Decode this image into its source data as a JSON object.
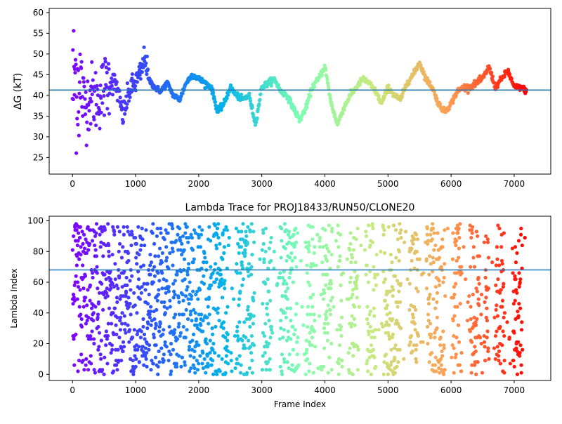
{
  "colors": {
    "hline": "#1f77b4",
    "colormap": "rainbow",
    "colormap_stops": [
      "#ff0000",
      "#ff9a50",
      "#c8e97e",
      "#7ffeb2",
      "#00b4eb",
      "#3050f8",
      "#8000ff"
    ]
  },
  "chart_data": [
    {
      "type": "scatter",
      "title": "",
      "xlabel": "",
      "ylabel": "ΔG (kT)",
      "xlim": [
        -370,
        7580
      ],
      "ylim": [
        21,
        61
      ],
      "xticks": [
        0,
        1000,
        2000,
        3000,
        4000,
        5000,
        6000,
        7000
      ],
      "xtick_labels": [
        "0",
        "1000",
        "2000",
        "3000",
        "4000",
        "5000",
        "6000",
        "7000"
      ],
      "yticks": [
        25,
        30,
        35,
        40,
        45,
        50,
        55,
        60
      ],
      "ytick_labels": [
        "25",
        "30",
        "35",
        "40",
        "45",
        "50",
        "55",
        "60"
      ],
      "hline": 41.3,
      "color_by": "frame index (rainbow colormap, red at frame 0 to violet at last frame)",
      "n_points": 7200,
      "trace_keypoints": {
        "x": [
          0,
          50,
          100,
          150,
          200,
          300,
          400,
          500,
          600,
          700,
          800,
          900,
          1000,
          1100,
          1150,
          1200,
          1300,
          1400,
          1500,
          1600,
          1700,
          1800,
          1900,
          2000,
          2100,
          2200,
          2300,
          2400,
          2500,
          2600,
          2700,
          2800,
          2900,
          3000,
          3100,
          3200,
          3300,
          3400,
          3500,
          3600,
          3700,
          3800,
          3900,
          4000,
          4100,
          4200,
          4300,
          4400,
          4500,
          4600,
          4700,
          4800,
          4900,
          5000,
          5100,
          5200,
          5300,
          5400,
          5500,
          5600,
          5700,
          5800,
          5900,
          6000,
          6100,
          6200,
          6300,
          6400,
          6500,
          6600,
          6700,
          6800,
          6900,
          7000,
          7100,
          7200
        ],
        "y": [
          42,
          45,
          43,
          40,
          38,
          40,
          39,
          42,
          44,
          42,
          35,
          41,
          43,
          46,
          50,
          44,
          42,
          41,
          43,
          40,
          39,
          43,
          45,
          44,
          43,
          42,
          36,
          38,
          42,
          40,
          39,
          40,
          33,
          42,
          43,
          44,
          41,
          40,
          37,
          34,
          37,
          42,
          44,
          47,
          38,
          33,
          37,
          40,
          42,
          44,
          43,
          41,
          38,
          42,
          40,
          39,
          43,
          45,
          48,
          44,
          42,
          38,
          36,
          38,
          41,
          42,
          42,
          43,
          44,
          47,
          42,
          44,
          46,
          42,
          42,
          41
        ]
      }
    },
    {
      "type": "scatter",
      "title": "Lambda Trace for PROJ18433/RUN50/CLONE20",
      "xlabel": "Frame Index",
      "ylabel": "Lambda Index",
      "xlim": [
        -370,
        7580
      ],
      "ylim": [
        -4,
        103
      ],
      "xticks": [
        0,
        1000,
        2000,
        3000,
        4000,
        5000,
        6000,
        7000
      ],
      "xtick_labels": [
        "0",
        "1000",
        "2000",
        "3000",
        "4000",
        "5000",
        "6000",
        "7000"
      ],
      "yticks": [
        0,
        20,
        40,
        60,
        80,
        100
      ],
      "ytick_labels": [
        "0",
        "20",
        "40",
        "60",
        "80",
        "100"
      ],
      "hline": 68,
      "y_range": [
        0,
        99
      ],
      "color_by": "frame index (rainbow colormap, red at frame 0 to violet at last frame)",
      "n_points": 7200
    }
  ]
}
